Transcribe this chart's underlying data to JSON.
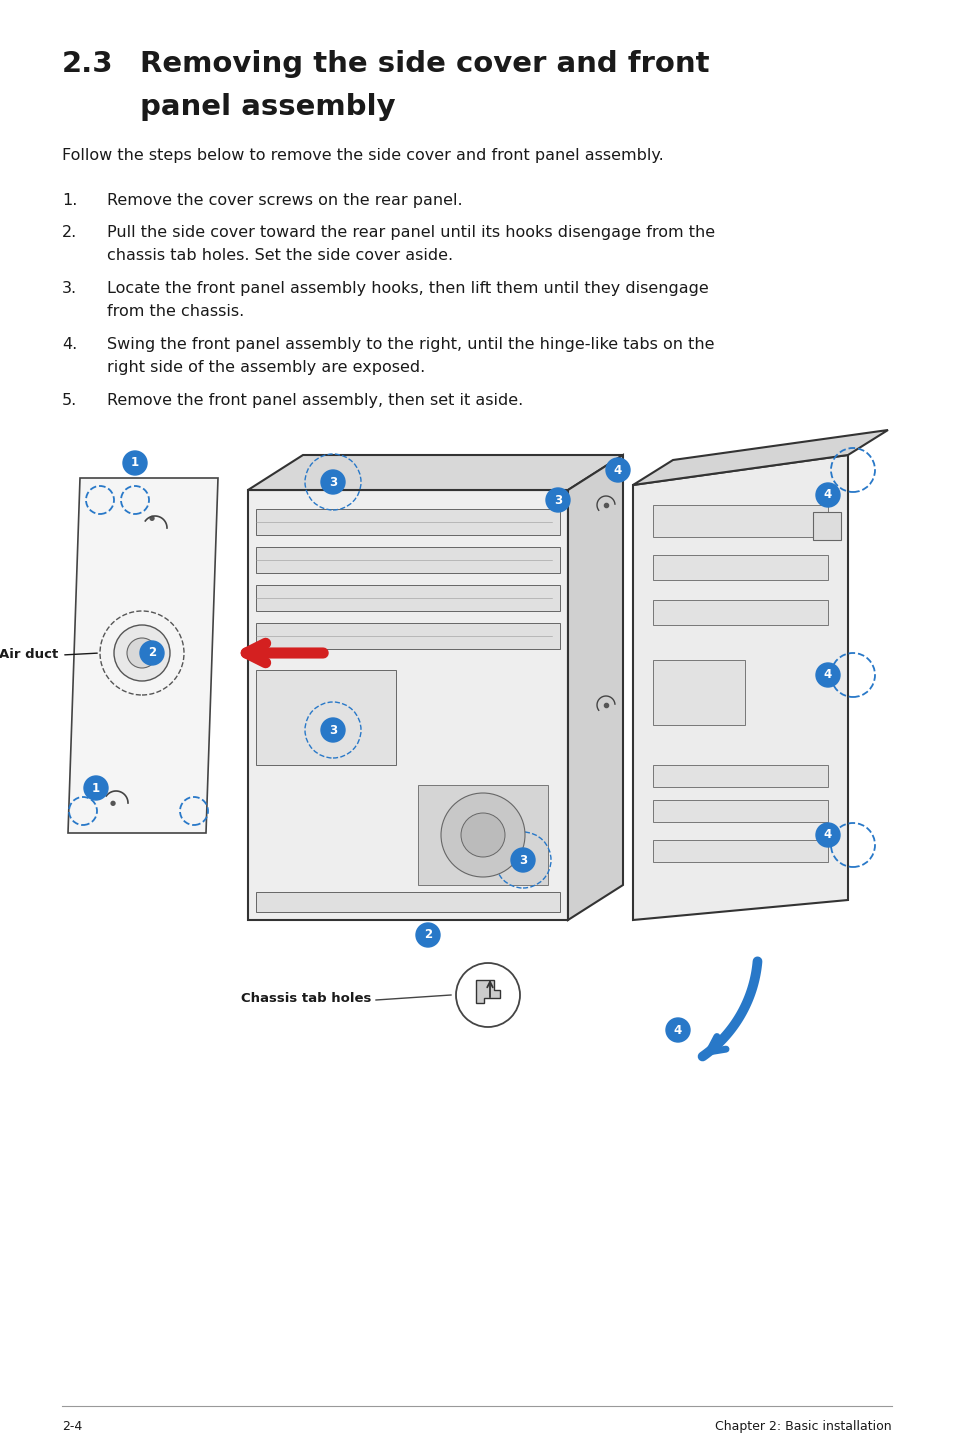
{
  "page_bg": "#ffffff",
  "section_number": "2.3",
  "section_title_line1": "Removing the side cover and front",
  "section_title_line2": "panel assembly",
  "intro_text": "Follow the steps below to remove the side cover and front panel assembly.",
  "steps": [
    "Remove the cover screws on the rear panel.",
    "Pull the side cover toward the rear panel until its hooks disengage from the\nchassis tab holes. Set the side cover aside.",
    "Locate the front panel assembly hooks, then lift them until they disengage\nfrom the chassis.",
    "Swing the front panel assembly to the right, until the hinge-like tabs on the\nright side of the assembly are exposed.",
    "Remove the front panel assembly, then set it aside."
  ],
  "footer_left": "2-4",
  "footer_right": "Chapter 2: Basic installation",
  "label_air_duct": "Air duct",
  "label_chassis_tab": "Chassis tab holes",
  "title_fontsize": 21,
  "body_fontsize": 11.5,
  "step_fontsize": 11.5,
  "text_color": "#1a1a1a",
  "blue_color": "#2878c8",
  "red_color": "#d42020",
  "line_color": "#999999"
}
